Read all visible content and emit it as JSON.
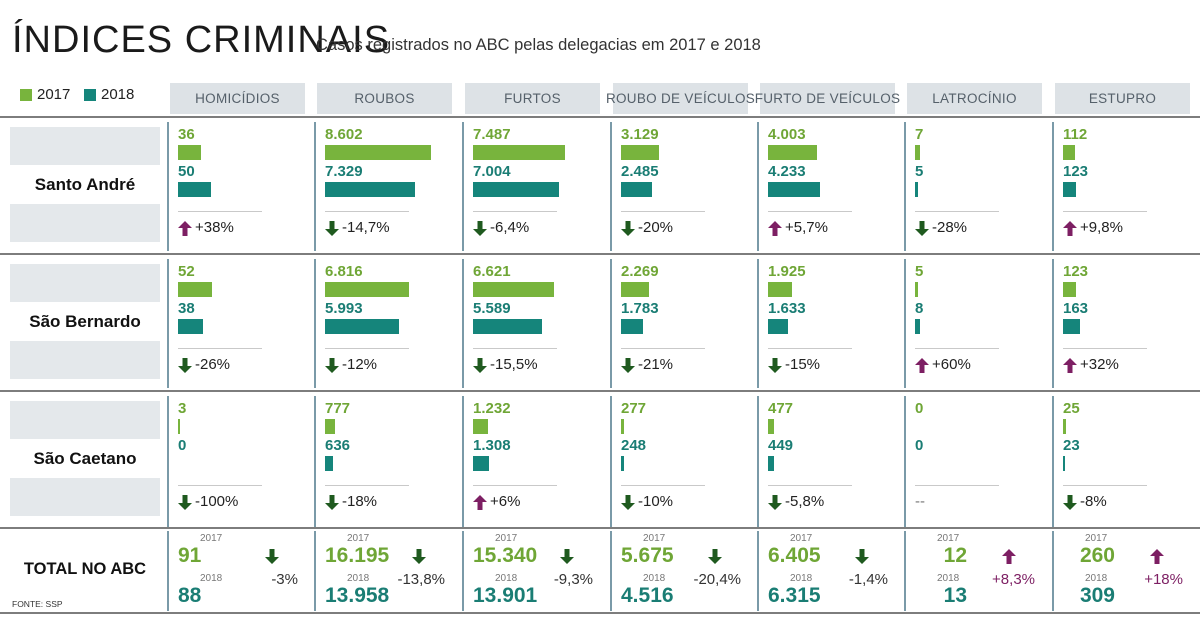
{
  "header": {
    "title": "ÍNDICES CRIMINAIS",
    "subtitle": "Casos registrados no ABC pelas delegacias em 2017 e 2018"
  },
  "legend": [
    {
      "label": "2017",
      "color": "#78b43d"
    },
    {
      "label": "2018",
      "color": "#15857b"
    }
  ],
  "total_label": "TOTAL NO ABC",
  "source": "FONTE: SSP",
  "year_labels": {
    "y2017": "2017",
    "y2018": "2018"
  },
  "colors": {
    "up_arrow": "#7d1f63",
    "down_arrow": "#1f5a1f",
    "bar2017": "#78b43d",
    "bar2018": "#15857b"
  },
  "chart_data": {
    "type": "bar",
    "title": "ÍNDICES CRIMINAIS",
    "subtitle": "Casos registrados no ABC pelas delegacias em 2017 e 2018",
    "series_names": [
      "2017",
      "2018"
    ],
    "categories": [
      "HOMICÍDIOS",
      "ROUBOS",
      "FURTOS",
      "ROUBO DE VEÍCULOS",
      "FURTO DE VEÍCULOS",
      "LATROCÍNIO",
      "ESTUPRO"
    ],
    "cities": [
      {
        "name": "Santo André",
        "values": [
          {
            "v2017": 36,
            "v2018": 50,
            "t2017": "36",
            "t2018": "50",
            "change": "+38%",
            "dir": "up"
          },
          {
            "v2017": 8602,
            "v2018": 7329,
            "t2017": "8.602",
            "t2018": "7.329",
            "change": "-14,7%",
            "dir": "down"
          },
          {
            "v2017": 7487,
            "v2018": 7004,
            "t2017": "7.487",
            "t2018": "7.004",
            "change": "-6,4%",
            "dir": "down"
          },
          {
            "v2017": 3129,
            "v2018": 2485,
            "t2017": "3.129",
            "t2018": "2.485",
            "change": "-20%",
            "dir": "down"
          },
          {
            "v2017": 4003,
            "v2018": 4233,
            "t2017": "4.003",
            "t2018": "4.233",
            "change": "+5,7%",
            "dir": "up"
          },
          {
            "v2017": 7,
            "v2018": 5,
            "t2017": "7",
            "t2018": "5",
            "change": "-28%",
            "dir": "down"
          },
          {
            "v2017": 112,
            "v2018": 123,
            "t2017": "112",
            "t2018": "123",
            "change": "+9,8%",
            "dir": "up"
          }
        ]
      },
      {
        "name": "São Bernardo",
        "values": [
          {
            "v2017": 52,
            "v2018": 38,
            "t2017": "52",
            "t2018": "38",
            "change": "-26%",
            "dir": "down"
          },
          {
            "v2017": 6816,
            "v2018": 5993,
            "t2017": "6.816",
            "t2018": "5.993",
            "change": "-12%",
            "dir": "down"
          },
          {
            "v2017": 6621,
            "v2018": 5589,
            "t2017": "6.621",
            "t2018": "5.589",
            "change": "-15,5%",
            "dir": "down"
          },
          {
            "v2017": 2269,
            "v2018": 1783,
            "t2017": "2.269",
            "t2018": "1.783",
            "change": "-21%",
            "dir": "down"
          },
          {
            "v2017": 1925,
            "v2018": 1633,
            "t2017": "1.925",
            "t2018": "1.633",
            "change": "-15%",
            "dir": "down"
          },
          {
            "v2017": 5,
            "v2018": 8,
            "t2017": "5",
            "t2018": "8",
            "change": "+60%",
            "dir": "up"
          },
          {
            "v2017": 123,
            "v2018": 163,
            "t2017": "123",
            "t2018": "163",
            "change": "+32%",
            "dir": "up"
          }
        ]
      },
      {
        "name": "São Caetano",
        "values": [
          {
            "v2017": 3,
            "v2018": 0,
            "t2017": "3",
            "t2018": "0",
            "change": "-100%",
            "dir": "down"
          },
          {
            "v2017": 777,
            "v2018": 636,
            "t2017": "777",
            "t2018": "636",
            "change": "-18%",
            "dir": "down"
          },
          {
            "v2017": 1232,
            "v2018": 1308,
            "t2017": "1.232",
            "t2018": "1.308",
            "change": "+6%",
            "dir": "up"
          },
          {
            "v2017": 277,
            "v2018": 248,
            "t2017": "277",
            "t2018": "248",
            "change": "-10%",
            "dir": "down"
          },
          {
            "v2017": 477,
            "v2018": 449,
            "t2017": "477",
            "t2018": "449",
            "change": "-5,8%",
            "dir": "down"
          },
          {
            "v2017": 0,
            "v2018": 0,
            "t2017": "0",
            "t2018": "0",
            "change": "--",
            "dir": "none"
          },
          {
            "v2017": 25,
            "v2018": 23,
            "t2017": "25",
            "t2018": "23",
            "change": "-8%",
            "dir": "down"
          }
        ]
      }
    ],
    "totals": [
      {
        "t2017": "91",
        "t2018": "88",
        "change": "-3%",
        "dir": "down"
      },
      {
        "t2017": "16.195",
        "t2018": "13.958",
        "change": "-13,8%",
        "dir": "down"
      },
      {
        "t2017": "15.340",
        "t2018": "13.901",
        "change": "-9,3%",
        "dir": "down"
      },
      {
        "t2017": "5.675",
        "t2018": "4.516",
        "change": "-20,4%",
        "dir": "down"
      },
      {
        "t2017": "6.405",
        "t2018": "6.315",
        "change": "-1,4%",
        "dir": "down"
      },
      {
        "t2017": "12",
        "t2018": "13",
        "change": "+8,3%",
        "dir": "up"
      },
      {
        "t2017": "260",
        "t2018": "309",
        "change": "+18%",
        "dir": "up"
      }
    ]
  }
}
